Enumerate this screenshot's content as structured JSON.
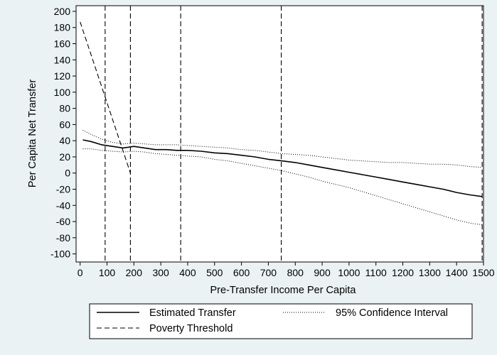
{
  "chart_data": {
    "type": "line",
    "xlabel": "Pre-Transfer Income Per Capita",
    "ylabel": "Per Capita Net Transfer",
    "xlim": [
      -15,
      1500
    ],
    "ylim": [
      -110,
      207
    ],
    "x_ticks": [
      0,
      100,
      200,
      300,
      400,
      500,
      600,
      700,
      800,
      900,
      1000,
      1100,
      1200,
      1300,
      1400,
      1500
    ],
    "x_tick_labels": [
      "0",
      "100",
      "200",
      "300",
      "400",
      "500",
      "600",
      "700",
      "800",
      "900",
      "1000",
      "1100",
      "1200",
      "1300",
      "1400",
      "1500"
    ],
    "y_ticks": [
      200,
      180,
      160,
      140,
      120,
      100,
      80,
      60,
      40,
      20,
      0,
      -20,
      -40,
      -60,
      -80,
      -100
    ],
    "y_tick_labels": [
      "200",
      "180",
      "160",
      "140",
      "120",
      "100",
      "80",
      "60",
      "40",
      "20",
      "0",
      "-20",
      "-40",
      "-60",
      "-80",
      "-100"
    ],
    "vertical_reference_lines": [
      93,
      187,
      374,
      748,
      1495
    ],
    "grid": false,
    "legend_placement": "bottom",
    "series": [
      {
        "name": "Estimated Transfer",
        "style": "solid",
        "x": [
          10,
          40,
          80,
          120,
          160,
          200,
          240,
          280,
          320,
          360,
          400,
          450,
          500,
          550,
          600,
          650,
          700,
          750,
          800,
          850,
          900,
          950,
          1000,
          1050,
          1100,
          1150,
          1200,
          1250,
          1300,
          1350,
          1400,
          1450,
          1495
        ],
        "y": [
          41,
          39,
          35,
          33,
          31,
          33,
          31,
          29,
          29,
          28,
          28,
          27,
          25,
          24,
          22,
          20,
          17,
          15,
          13,
          10,
          7,
          4,
          1,
          -2,
          -5,
          -8,
          -11,
          -14,
          -17,
          -20,
          -24,
          -27,
          -29
        ]
      },
      {
        "name": "95% Confidence Interval",
        "style": "dotted",
        "part": "upper",
        "x": [
          10,
          40,
          80,
          120,
          160,
          200,
          240,
          280,
          320,
          360,
          400,
          450,
          500,
          550,
          600,
          650,
          700,
          750,
          800,
          850,
          900,
          950,
          1000,
          1050,
          1100,
          1150,
          1200,
          1250,
          1300,
          1350,
          1400,
          1450,
          1495
        ],
        "y": [
          53,
          48,
          42,
          38,
          36,
          37,
          36,
          35,
          35,
          35,
          34,
          33,
          32,
          31,
          29,
          28,
          26,
          24,
          23,
          22,
          20,
          18,
          16,
          15,
          14,
          13,
          13,
          12,
          11,
          11,
          10,
          8,
          7
        ]
      },
      {
        "name": "95% Confidence Interval",
        "style": "dotted",
        "part": "lower",
        "x": [
          10,
          40,
          80,
          120,
          160,
          200,
          240,
          280,
          320,
          360,
          400,
          450,
          500,
          550,
          600,
          650,
          700,
          750,
          800,
          850,
          900,
          950,
          1000,
          1050,
          1100,
          1150,
          1200,
          1250,
          1300,
          1350,
          1400,
          1450,
          1495
        ],
        "y": [
          30,
          30,
          28,
          27,
          26,
          27,
          26,
          24,
          23,
          22,
          21,
          20,
          17,
          15,
          12,
          9,
          6,
          3,
          -1,
          -5,
          -10,
          -14,
          -18,
          -23,
          -28,
          -33,
          -38,
          -43,
          -48,
          -53,
          -58,
          -62,
          -64
        ]
      },
      {
        "name": "Poverty Threshold",
        "style": "dashed",
        "x": [
          0,
          187
        ],
        "y": [
          187,
          0
        ]
      }
    ],
    "legend": [
      {
        "label": "Estimated Transfer",
        "style": "solid"
      },
      {
        "label": "95% Confidence Interval",
        "style": "dotted"
      },
      {
        "label": "Poverty Threshold",
        "style": "dashed"
      }
    ]
  }
}
